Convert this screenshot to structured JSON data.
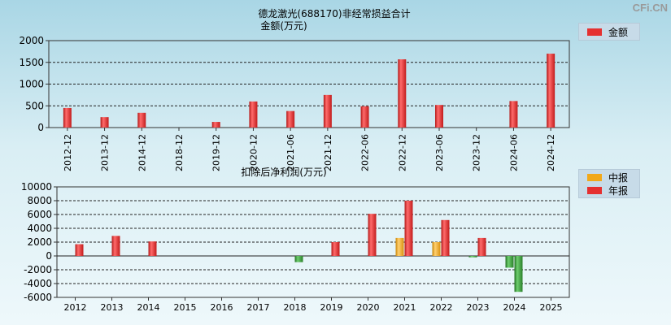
{
  "watermark": "CFi.CN",
  "colors": {
    "annual": "#e53030",
    "interim": "#f2a818",
    "loss": "#3a9a3a"
  },
  "chart_data": [
    {
      "type": "bar",
      "title": "德龙激光(688170)非经常损益合计",
      "subtitle": "金额(万元)",
      "legend": [
        "金额"
      ],
      "legend_position": "top-right",
      "categories": [
        "2012-12",
        "2013-12",
        "2014-12",
        "2018-12",
        "2019-12",
        "2020-12",
        "2021-06",
        "2021-12",
        "2022-06",
        "2022-12",
        "2023-06",
        "2023-12",
        "2024-06",
        "2024-12"
      ],
      "values": [
        450,
        240,
        340,
        0,
        130,
        600,
        380,
        750,
        490,
        1570,
        520,
        0,
        610,
        1700
      ],
      "yticks": [
        0,
        500,
        1000,
        1500,
        2000
      ],
      "ylim": [
        0,
        2000
      ],
      "grid": true
    },
    {
      "type": "bar",
      "title": "扣除后净利润(万元)",
      "legend": [
        "中报",
        "年报"
      ],
      "legend_position": "top-right",
      "categories": [
        "2012",
        "2013",
        "2014",
        "2015",
        "2016",
        "2017",
        "2018",
        "2019",
        "2020",
        "2021",
        "2022",
        "2023",
        "2024",
        "2025"
      ],
      "series": [
        {
          "name": "中报",
          "values": [
            null,
            null,
            null,
            null,
            null,
            null,
            null,
            null,
            null,
            2600,
            2000,
            -200,
            -1700,
            null
          ]
        },
        {
          "name": "年报",
          "values": [
            1700,
            2900,
            2100,
            null,
            null,
            null,
            -900,
            2000,
            6100,
            8000,
            5200,
            2600,
            -5200,
            null
          ]
        }
      ],
      "yticks": [
        -6000,
        -4000,
        -2000,
        0,
        2000,
        4000,
        6000,
        8000,
        10000
      ],
      "ylim": [
        -6000,
        10000
      ],
      "grid": true
    }
  ]
}
